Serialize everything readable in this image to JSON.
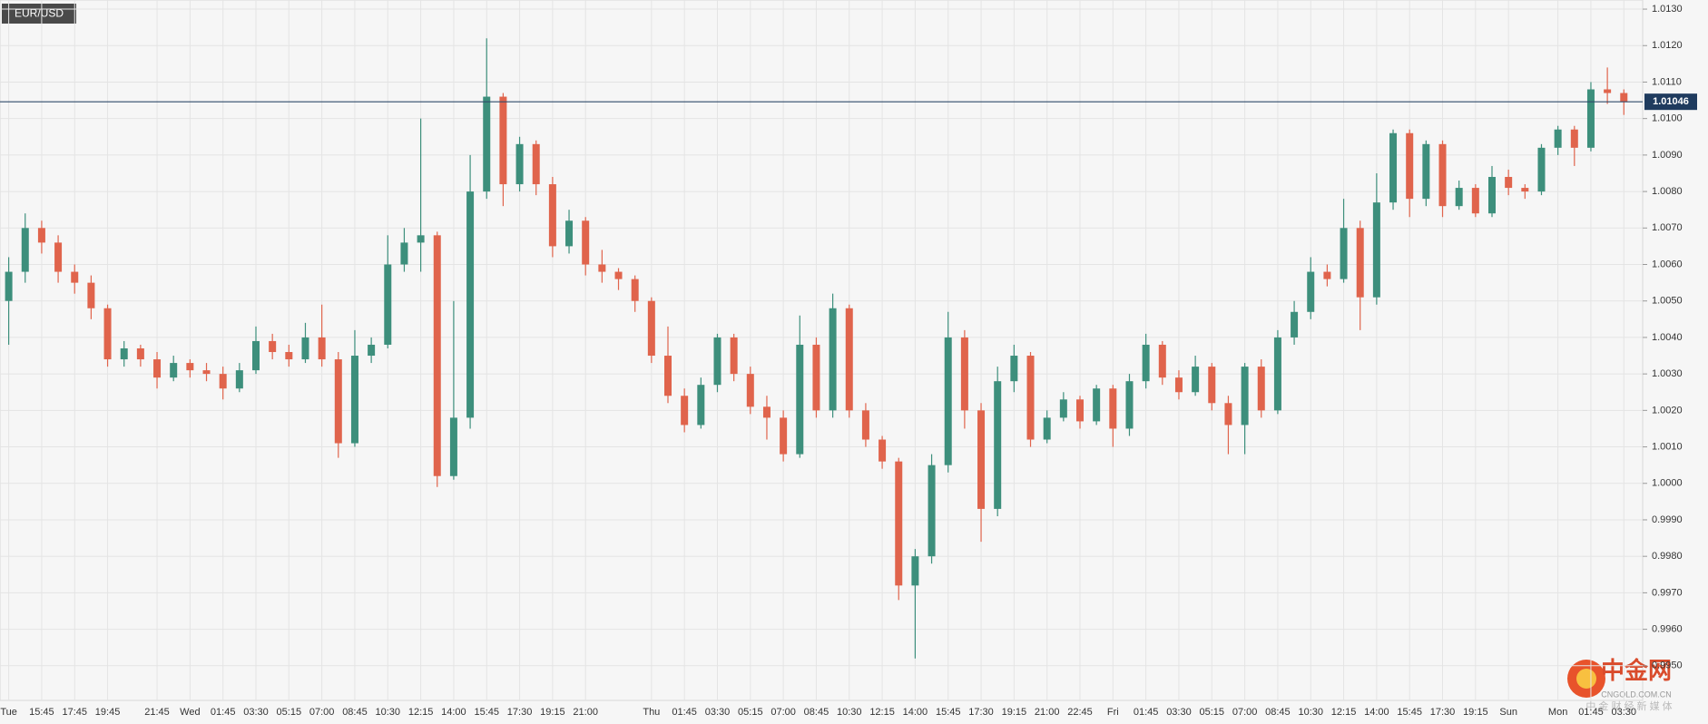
{
  "chart_data": {
    "type": "candlestick",
    "title": "EUR/USD",
    "categories": [
      "Tue",
      null,
      "15:45",
      null,
      "17:45",
      null,
      "19:45",
      null,
      null,
      "21:45",
      null,
      "Wed",
      null,
      "01:45",
      null,
      "03:30",
      null,
      "05:15",
      null,
      "07:00",
      null,
      "08:45",
      null,
      "10:30",
      null,
      "12:15",
      null,
      "14:00",
      null,
      "15:45",
      null,
      "17:30",
      null,
      "19:15",
      null,
      "21:00",
      null,
      null,
      null,
      "Thu",
      null,
      "01:45",
      null,
      "03:30",
      null,
      "05:15",
      null,
      "07:00",
      null,
      "08:45",
      null,
      "10:30",
      null,
      "12:15",
      null,
      "14:00",
      null,
      "15:45",
      null,
      "17:30",
      null,
      "19:15",
      null,
      "21:00",
      null,
      "22:45",
      null,
      "Fri",
      null,
      "01:45",
      null,
      "03:30",
      null,
      "05:15",
      null,
      "07:00",
      null,
      "08:45",
      null,
      "10:30",
      null,
      "12:15",
      null,
      "14:00",
      null,
      "15:45",
      null,
      "17:30",
      null,
      "19:15",
      null,
      "Sun",
      null,
      null,
      "Mon",
      null,
      "01:45",
      null,
      "03:30"
    ],
    "open": [
      1.005,
      1.0058,
      1.007,
      1.0066,
      1.0058,
      1.0055,
      1.0048,
      1.0034,
      1.0037,
      1.0034,
      1.0029,
      1.0033,
      1.0031,
      1.003,
      1.0026,
      1.0031,
      1.0039,
      1.0036,
      1.0034,
      1.004,
      1.0034,
      1.0011,
      1.0035,
      1.0038,
      1.006,
      1.0066,
      1.0068,
      1.0002,
      1.0018,
      1.008,
      1.0106,
      1.0082,
      1.0093,
      1.0082,
      1.0065,
      1.0072,
      1.006,
      1.0058,
      1.0056,
      1.005,
      1.0035,
      1.0024,
      1.0016,
      1.0027,
      1.004,
      1.003,
      1.0021,
      1.0018,
      1.0008,
      1.0038,
      1.002,
      1.0048,
      1.002,
      1.0012,
      1.0006,
      0.9972,
      0.998,
      1.0005,
      1.004,
      1.002,
      0.9993,
      1.0028,
      1.0035,
      1.0012,
      1.0018,
      1.0023,
      1.0017,
      1.0026,
      1.0015,
      1.0028,
      1.0038,
      1.0029,
      1.0025,
      1.0032,
      1.0022,
      1.0016,
      1.0032,
      1.002,
      1.004,
      1.0047,
      1.0058,
      1.0056,
      1.007,
      1.0051,
      1.0077,
      1.0096,
      1.0078,
      1.0093,
      1.0076,
      1.0081,
      1.0074,
      1.0084,
      1.0081,
      1.008,
      1.0092,
      1.0097,
      1.0092,
      1.0108,
      1.0107
    ],
    "high": [
      1.0062,
      1.0074,
      1.0072,
      1.0068,
      1.006,
      1.0057,
      1.0049,
      1.0039,
      1.0038,
      1.0036,
      1.0035,
      1.0034,
      1.0033,
      1.0032,
      1.0033,
      1.0043,
      1.0041,
      1.0038,
      1.0044,
      1.0049,
      1.0036,
      1.0042,
      1.004,
      1.0068,
      1.007,
      1.01,
      1.0069,
      1.005,
      1.009,
      1.0122,
      1.0107,
      1.0095,
      1.0094,
      1.0084,
      1.0075,
      1.0073,
      1.0064,
      1.0059,
      1.0057,
      1.0051,
      1.0043,
      1.0026,
      1.0029,
      1.0041,
      1.0041,
      1.0032,
      1.0024,
      1.002,
      1.0046,
      1.004,
      1.0052,
      1.0049,
      1.0022,
      1.0013,
      1.0007,
      0.9982,
      1.0008,
      1.0047,
      1.0042,
      1.0022,
      1.0032,
      1.0038,
      1.0036,
      1.002,
      1.0025,
      1.0024,
      1.0027,
      1.0027,
      1.003,
      1.0041,
      1.0039,
      1.0031,
      1.0035,
      1.0033,
      1.0024,
      1.0033,
      1.0034,
      1.0042,
      1.005,
      1.0062,
      1.006,
      1.0078,
      1.0072,
      1.0085,
      1.0097,
      1.0097,
      1.0094,
      1.0094,
      1.0083,
      1.0082,
      1.0087,
      1.0086,
      1.0082,
      1.0093,
      1.0098,
      1.0098,
      1.011,
      1.0114,
      1.0108
    ],
    "low": [
      1.0038,
      1.0055,
      1.0063,
      1.0055,
      1.0052,
      1.0045,
      1.0032,
      1.0032,
      1.0032,
      1.0026,
      1.0028,
      1.0029,
      1.0028,
      1.0023,
      1.0025,
      1.003,
      1.0034,
      1.0032,
      1.0033,
      1.0032,
      1.0007,
      1.001,
      1.0033,
      1.0037,
      1.0058,
      1.0058,
      0.9999,
      1.0001,
      1.0015,
      1.0078,
      1.0076,
      1.008,
      1.0079,
      1.0062,
      1.0063,
      1.0057,
      1.0055,
      1.0053,
      1.0047,
      1.0033,
      1.0022,
      1.0014,
      1.0015,
      1.0025,
      1.0028,
      1.0019,
      1.0012,
      1.0006,
      1.0007,
      1.0018,
      1.0018,
      1.0018,
      1.001,
      1.0004,
      0.9968,
      0.9952,
      0.9978,
      1.0003,
      1.0015,
      0.9984,
      0.9991,
      1.0025,
      1.001,
      1.0011,
      1.0017,
      1.0015,
      1.0016,
      1.001,
      1.0013,
      1.0026,
      1.0027,
      1.0023,
      1.0024,
      1.002,
      1.0008,
      1.0008,
      1.0018,
      1.0019,
      1.0038,
      1.0045,
      1.0054,
      1.0055,
      1.0042,
      1.0049,
      1.0075,
      1.0073,
      1.0076,
      1.0073,
      1.0075,
      1.0073,
      1.0073,
      1.0079,
      1.0078,
      1.0079,
      1.009,
      1.0087,
      1.0091,
      1.0104,
      1.0101
    ],
    "close": [
      1.0058,
      1.007,
      1.0066,
      1.0058,
      1.0055,
      1.0048,
      1.0034,
      1.0037,
      1.0034,
      1.0029,
      1.0033,
      1.0031,
      1.003,
      1.0026,
      1.0031,
      1.0039,
      1.0036,
      1.0034,
      1.004,
      1.0034,
      1.0011,
      1.0035,
      1.0038,
      1.006,
      1.0066,
      1.0068,
      1.0002,
      1.0018,
      1.008,
      1.0106,
      1.0082,
      1.0093,
      1.0082,
      1.0065,
      1.0072,
      1.006,
      1.0058,
      1.0056,
      1.005,
      1.0035,
      1.0024,
      1.0016,
      1.0027,
      1.004,
      1.003,
      1.0021,
      1.0018,
      1.0008,
      1.0038,
      1.002,
      1.0048,
      1.002,
      1.0012,
      1.0006,
      0.9972,
      0.998,
      1.0005,
      1.004,
      1.002,
      0.9993,
      1.0028,
      1.0035,
      1.0012,
      1.0018,
      1.0023,
      1.0017,
      1.0026,
      1.0015,
      1.0028,
      1.0038,
      1.0029,
      1.0025,
      1.0032,
      1.0022,
      1.0016,
      1.0032,
      1.002,
      1.004,
      1.0047,
      1.0058,
      1.0056,
      1.007,
      1.0051,
      1.0077,
      1.0096,
      1.0078,
      1.0093,
      1.0076,
      1.0081,
      1.0074,
      1.0084,
      1.0081,
      1.008,
      1.0092,
      1.0097,
      1.0092,
      1.0108,
      1.0107,
      1.01046
    ],
    "up_color": "#3d8f7c",
    "down_color": "#e0644c",
    "last_price": 1.01046,
    "ylim": [
      0.99405,
      1.01325
    ],
    "yticks": [
      {
        "value": 0.995,
        "label": "0.9950"
      },
      {
        "value": 0.996,
        "label": "0.9960"
      },
      {
        "value": 0.997,
        "label": "0.9970"
      },
      {
        "value": 0.998,
        "label": "0.9980"
      },
      {
        "value": 0.999,
        "label": "0.9990"
      },
      {
        "value": 1.0,
        "label": "1.0000"
      },
      {
        "value": 1.001,
        "label": "1.0010"
      },
      {
        "value": 1.002,
        "label": "1.0020"
      },
      {
        "value": 1.003,
        "label": "1.0030"
      },
      {
        "value": 1.004,
        "label": "1.0040"
      },
      {
        "value": 1.005,
        "label": "1.0050"
      },
      {
        "value": 1.006,
        "label": "1.0060"
      },
      {
        "value": 1.007,
        "label": "1.0070"
      },
      {
        "value": 1.008,
        "label": "1.0080"
      },
      {
        "value": 1.009,
        "label": "1.0090"
      },
      {
        "value": 1.01,
        "label": "1.0100"
      },
      {
        "value": 1.011,
        "label": "1.0110"
      },
      {
        "value": 1.012,
        "label": "1.0120"
      },
      {
        "value": 1.013,
        "label": "1.0130"
      }
    ],
    "grid": true
  },
  "watermark": {
    "brand": "中金网",
    "site": "CNGOLD.COM.CN",
    "slogan": "中 金 财 经 新 媒 体"
  }
}
